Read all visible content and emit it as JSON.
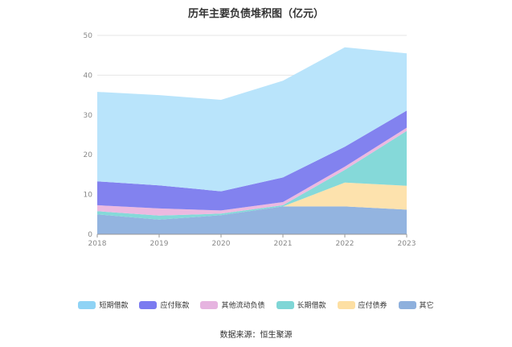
{
  "chart_data": {
    "type": "area",
    "stacked": true,
    "title": "历年主要负债堆积图（亿元）",
    "x": [
      "2018",
      "2019",
      "2020",
      "2021",
      "2022",
      "2023"
    ],
    "ylim": [
      0,
      50
    ],
    "yticks": [
      0,
      10,
      20,
      30,
      40,
      50
    ],
    "grid": true,
    "legend_position": "bottom",
    "series": [
      {
        "name": "其它",
        "color": "#93b4e0",
        "values": [
          5.0,
          3.7,
          4.8,
          7.0,
          7.0,
          6.2
        ]
      },
      {
        "name": "应付债券",
        "color": "#fde2ad",
        "values": [
          0.0,
          0.0,
          0.0,
          0.0,
          6.0,
          6.0
        ]
      },
      {
        "name": "长期借款",
        "color": "#85d9d9",
        "values": [
          0.8,
          1.0,
          0.4,
          0.3,
          3.2,
          13.8
        ]
      },
      {
        "name": "其他流动负债",
        "color": "#ecb9e0",
        "values": [
          1.5,
          1.8,
          0.8,
          0.8,
          0.8,
          0.8
        ]
      },
      {
        "name": "应付账款",
        "color": "#8282ef",
        "values": [
          6.0,
          5.8,
          4.8,
          6.2,
          5.0,
          4.3
        ]
      },
      {
        "name": "短期借款",
        "color": "#b9e4fb",
        "values": [
          22.5,
          22.7,
          23.0,
          24.3,
          25.0,
          14.4
        ]
      }
    ]
  },
  "legend": [
    {
      "label": "短期借款",
      "color": "#8fd3f5"
    },
    {
      "label": "应付账款",
      "color": "#7b7bf0"
    },
    {
      "label": "其他流动负债",
      "color": "#e6b4e0"
    },
    {
      "label": "长期借款",
      "color": "#7fd6d6"
    },
    {
      "label": "应付债券",
      "color": "#fddfa3"
    },
    {
      "label": "其它",
      "color": "#8eb0dd"
    }
  ],
  "source": "数据来源：恒生聚源"
}
